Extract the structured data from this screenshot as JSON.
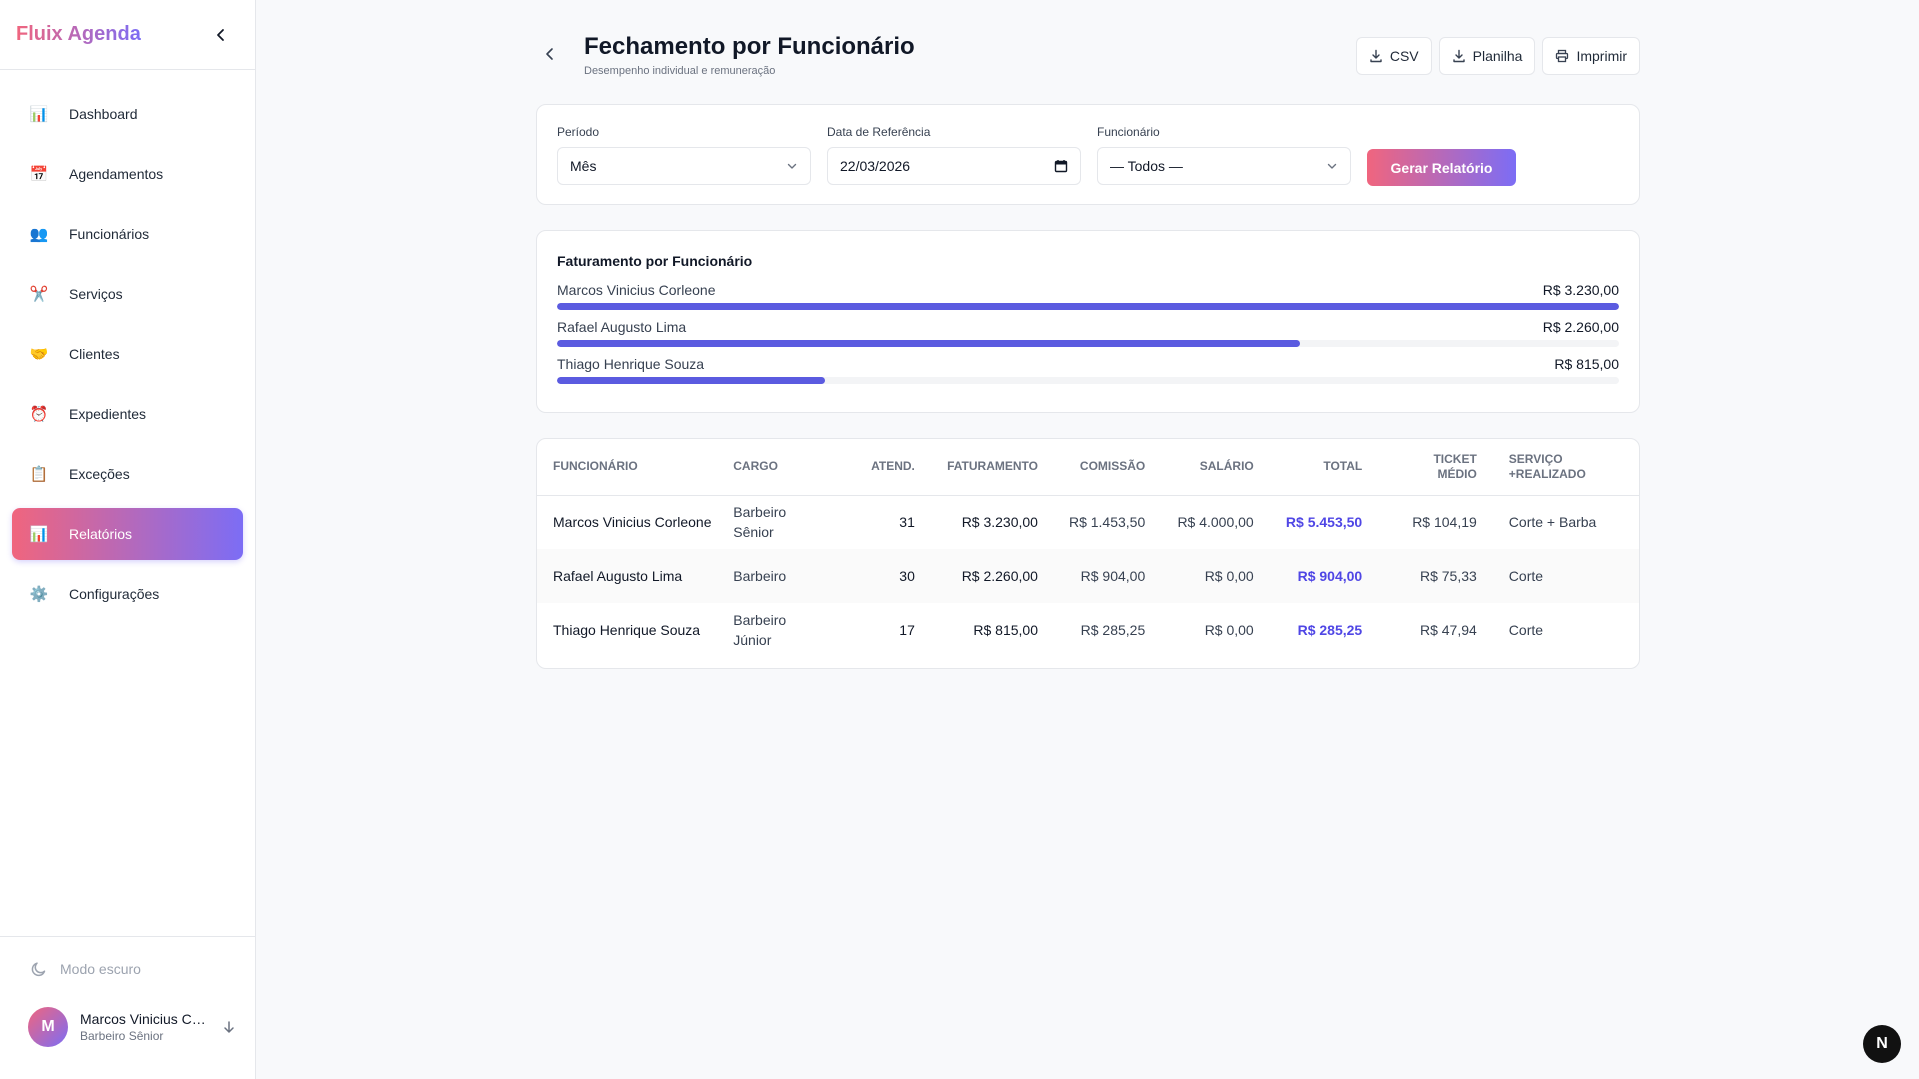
{
  "app": {
    "brand": "Fluix Agenda"
  },
  "sidebar": {
    "items": [
      {
        "label": "Dashboard",
        "icon": "📊"
      },
      {
        "label": "Agendamentos",
        "icon": "📅"
      },
      {
        "label": "Funcionários",
        "icon": "👥"
      },
      {
        "label": "Serviços",
        "icon": "✂️"
      },
      {
        "label": "Clientes",
        "icon": "🤝"
      },
      {
        "label": "Expedientes",
        "icon": "⏰"
      },
      {
        "label": "Exceções",
        "icon": "📋"
      },
      {
        "label": "Relatórios",
        "icon": "📊"
      },
      {
        "label": "Configurações",
        "icon": "⚙️"
      }
    ],
    "dark_mode_label": "Modo escuro",
    "user": {
      "initial": "M",
      "name": "Marcos Vinicius Corleone",
      "role": "Barbeiro Sênior"
    }
  },
  "header": {
    "title": "Fechamento por Funcionário",
    "subtitle": "Desempenho individual e remuneração",
    "actions": {
      "csv": "CSV",
      "sheet": "Planilha",
      "print": "Imprimir"
    }
  },
  "filters": {
    "period": {
      "label": "Período",
      "value": "Mês"
    },
    "ref_date": {
      "label": "Data de Referência",
      "value": "22/03/2026"
    },
    "employee": {
      "label": "Funcionário",
      "value": "— Todos —"
    },
    "generate_label": "Gerar Relatório"
  },
  "revenue": {
    "title": "Faturamento por Funcionário",
    "rows": [
      {
        "name": "Marcos Vinicius Corleone",
        "value": "R$ 3.230,00",
        "fraction": 1.0
      },
      {
        "name": "Rafael Augusto Lima",
        "value": "R$ 2.260,00",
        "fraction": 0.6997
      },
      {
        "name": "Thiago Henrique Souza",
        "value": "R$ 815,00",
        "fraction": 0.2523
      }
    ]
  },
  "table": {
    "headers": {
      "employee": "Funcionário",
      "role": "Cargo",
      "visits": "Atend.",
      "revenue": "Faturamento",
      "commission": "Comissão",
      "salary": "Salário",
      "total": "Total",
      "ticket_1": "Ticket",
      "ticket_2": "Médio",
      "service_1": "Serviço",
      "service_2": "+realizado"
    },
    "rows": [
      {
        "name": "Marcos Vinicius Corleone",
        "role": "Barbeiro Sênior",
        "visits": "31",
        "revenue": "R$ 3.230,00",
        "commission": "R$ 1.453,50",
        "salary": "R$ 4.000,00",
        "total": "R$ 5.453,50",
        "ticket": "R$ 104,19",
        "service": "Corte + Barba"
      },
      {
        "name": "Rafael Augusto Lima",
        "role": "Barbeiro",
        "visits": "30",
        "revenue": "R$ 2.260,00",
        "commission": "R$ 904,00",
        "salary": "R$ 0,00",
        "total": "R$ 904,00",
        "ticket": "R$ 75,33",
        "service": "Corte"
      },
      {
        "name": "Thiago Henrique Souza",
        "role": "Barbeiro Júnior",
        "visits": "17",
        "revenue": "R$ 815,00",
        "commission": "R$ 285,25",
        "salary": "R$ 0,00",
        "total": "R$ 285,25",
        "ticket": "R$ 47,94",
        "service": "Corte"
      }
    ]
  },
  "badge": "N"
}
